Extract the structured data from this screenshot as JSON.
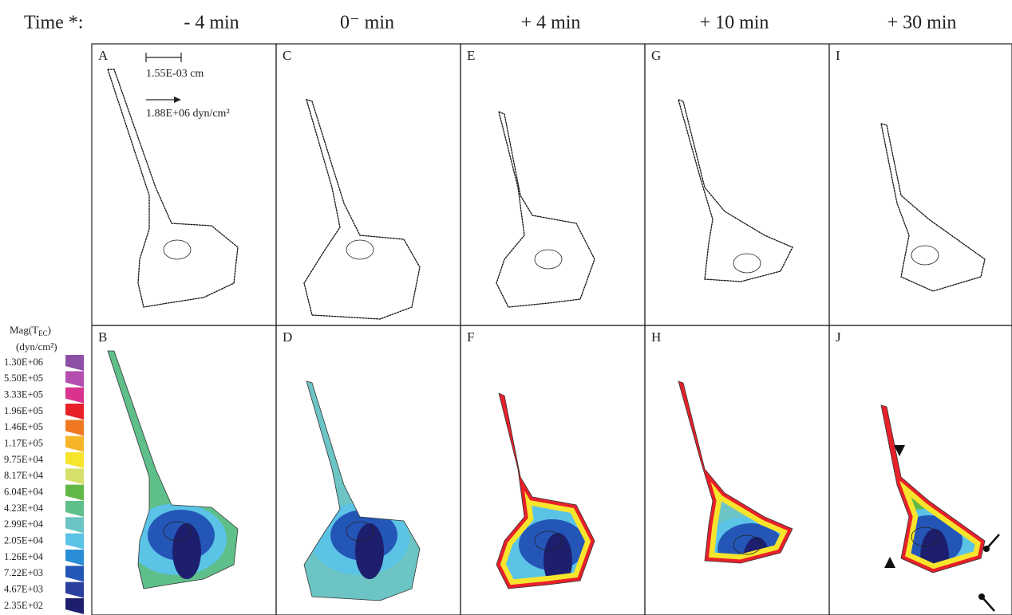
{
  "header": {
    "time_label": "Time *:",
    "columns": [
      "- 4 min",
      "0⁻ min",
      "+ 4 min",
      "+ 10 min",
      "+ 30 min"
    ]
  },
  "panels": {
    "top": [
      "A",
      "C",
      "E",
      "G",
      "I"
    ],
    "bottom": [
      "B",
      "D",
      "F",
      "H",
      "J"
    ]
  },
  "scale": {
    "length": "1.55E-03 cm",
    "stress": "1.88E+06 dyn/cm²"
  },
  "legend": {
    "title_main": "Mag(T",
    "title_sub": "EC",
    "title_end": ")",
    "units": "(dyn/cm²)",
    "entries": [
      {
        "label": "1.30E+06",
        "color": "#8e4fa6"
      },
      {
        "label": "5.50E+05",
        "color": "#b44fb0"
      },
      {
        "label": "3.33E+05",
        "color": "#d9338f"
      },
      {
        "label": "1.96E+05",
        "color": "#e8202a"
      },
      {
        "label": "1.46E+05",
        "color": "#f07822"
      },
      {
        "label": "1.17E+05",
        "color": "#f7b52a"
      },
      {
        "label": "9.75E+04",
        "color": "#f6e52c"
      },
      {
        "label": "8.17E+04",
        "color": "#d6e06a"
      },
      {
        "label": "6.04E+04",
        "color": "#62b846"
      },
      {
        "label": "4.23E+04",
        "color": "#5fbf8a"
      },
      {
        "label": "2.99E+04",
        "color": "#6cc4c4"
      },
      {
        "label": "2.05E+04",
        "color": "#5bc3e6"
      },
      {
        "label": "1.26E+04",
        "color": "#2a8ed6"
      },
      {
        "label": "7.22E+03",
        "color": "#2456b8"
      },
      {
        "label": "4.67E+03",
        "color": "#2a3f9e"
      },
      {
        "label": "2.35E+02",
        "color": "#1d1f6e"
      }
    ]
  }
}
